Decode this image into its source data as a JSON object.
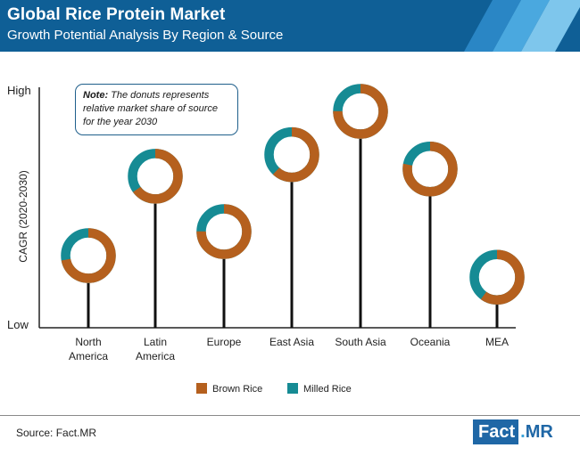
{
  "header": {
    "title": "Global Rice Protein Market",
    "subtitle": "Growth Potential Analysis By Region & Source"
  },
  "note": {
    "bold": "Note:",
    "text": " The donuts represents relative market share of source for the year 2030"
  },
  "footer": {
    "source": "Source: Fact.MR",
    "logo_fact": "Fact",
    "logo_dot": ".",
    "logo_mr": "MR"
  },
  "colors": {
    "brown": "#b5601e",
    "teal": "#168b94",
    "header": "#0f5f96",
    "stripe_1": "#2a86c5",
    "stripe_2": "#4aa8df",
    "stripe_3": "#7ec6ec"
  },
  "chart_data": {
    "type": "scatter",
    "ylabel": "CAGR (2020-2030)",
    "y_tick_labels": {
      "high": "High",
      "low": "Low"
    },
    "categories": [
      "North\nAmerica",
      "Latin\nAmerica",
      "Europe",
      "East Asia",
      "South Asia",
      "Oceania",
      "MEA"
    ],
    "relative_cagr": [
      0.3,
      0.63,
      0.4,
      0.72,
      0.9,
      0.66,
      0.21
    ],
    "series": [
      {
        "name": "Brown Rice",
        "color": "#b5601e",
        "share": [
          0.72,
          0.65,
          0.75,
          0.62,
          0.75,
          0.78,
          0.6
        ]
      },
      {
        "name": "Milled Rice",
        "color": "#168b94",
        "share": [
          0.28,
          0.35,
          0.25,
          0.38,
          0.25,
          0.22,
          0.4
        ]
      }
    ],
    "legend": "bottom-center"
  }
}
